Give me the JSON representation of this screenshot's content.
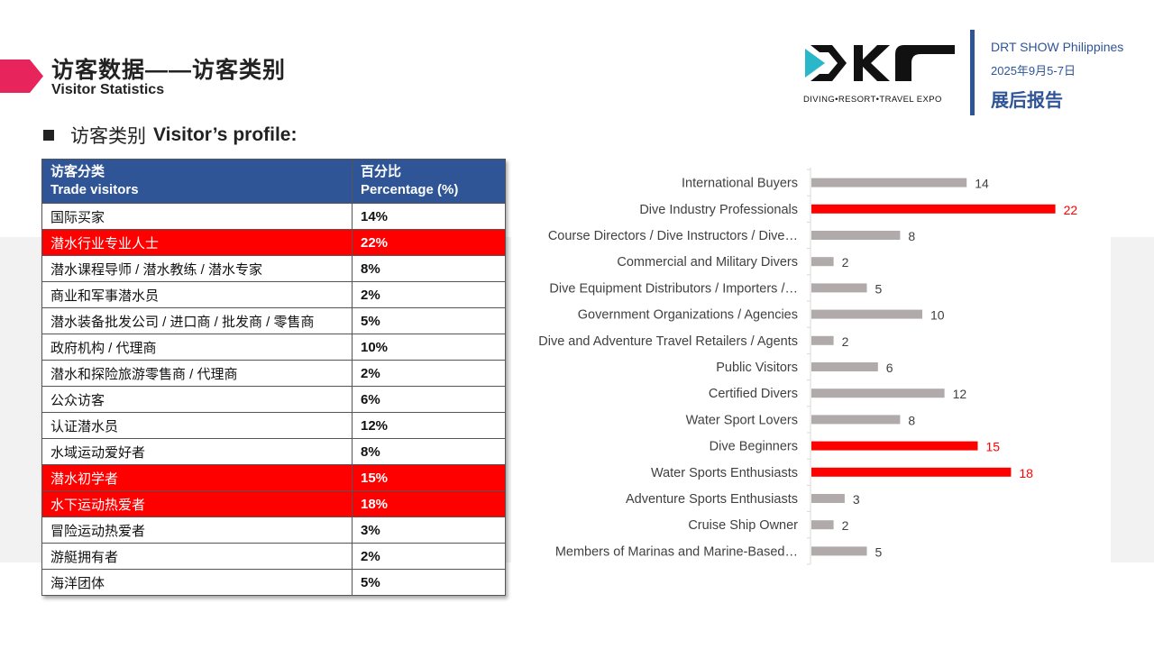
{
  "header": {
    "title_cn": "访客数据——访客类别",
    "title_en": "Visitor Statistics"
  },
  "logo": {
    "tagline": "DIVING•RESORT•TRAVEL EXPO"
  },
  "event": {
    "name": "DRT SHOW Philippines",
    "date": "2025年9月5-7日",
    "report": "展后报告"
  },
  "section": {
    "cn": "访客类别",
    "en": "Visitor’s profile:"
  },
  "table": {
    "header": {
      "col1_cn": "访客分类",
      "col1_en": "Trade visitors",
      "col2_cn": "百分比",
      "col2_en": "Percentage (%)"
    },
    "rows": [
      {
        "name": "国际买家",
        "pct": "14%",
        "highlight": false
      },
      {
        "name": "潜水行业专业人士",
        "pct": "22%",
        "highlight": true
      },
      {
        "name": "潜水课程导师 / 潜水教练 / 潜水专家",
        "pct": "8%",
        "highlight": false
      },
      {
        "name": "商业和军事潜水员",
        "pct": "2%",
        "highlight": false
      },
      {
        "name": "潜水装备批发公司 / 进口商 / 批发商 / 零售商",
        "pct": "5%",
        "highlight": false
      },
      {
        "name": "政府机构 / 代理商",
        "pct": "10%",
        "highlight": false
      },
      {
        "name": "潜水和探险旅游零售商 / 代理商",
        "pct": "2%",
        "highlight": false
      },
      {
        "name": "公众访客",
        "pct": "6%",
        "highlight": false
      },
      {
        "name": "认证潜水员",
        "pct": "12%",
        "highlight": false
      },
      {
        "name": "水域运动爱好者",
        "pct": "8%",
        "highlight": false
      },
      {
        "name": "潜水初学者",
        "pct": "15%",
        "highlight": true
      },
      {
        "name": "水下运动热爱者",
        "pct": "18%",
        "highlight": true
      },
      {
        "name": "冒险运动热爱者",
        "pct": "3%",
        "highlight": false
      },
      {
        "name": "游艇拥有者",
        "pct": "2%",
        "highlight": false
      },
      {
        "name": "海洋团体",
        "pct": "5%",
        "highlight": false
      }
    ]
  },
  "colors": {
    "accent_blue": "#2f5597",
    "highlight_red": "#ff0000",
    "bar_gray": "#b0aaaa",
    "arrow_pink": "#e8245c"
  },
  "chart_data": {
    "type": "bar",
    "orientation": "horizontal",
    "categories": [
      "International Buyers",
      "Dive Industry Professionals",
      "Course Directors / Dive Instructors / Dive…",
      "Commercial and Military Divers",
      "Dive Equipment Distributors / Importers /…",
      "Government Organizations / Agencies",
      "Dive and Adventure Travel Retailers / Agents",
      "Public Visitors",
      "Certified Divers",
      "Water Sport Lovers",
      "Dive Beginners",
      "Water Sports Enthusiasts",
      "Adventure Sports Enthusiasts",
      "Cruise Ship Owner",
      "Members of Marinas and Marine-Based…"
    ],
    "values": [
      14,
      22,
      8,
      2,
      5,
      10,
      2,
      6,
      12,
      8,
      15,
      18,
      3,
      2,
      5
    ],
    "highlight": [
      false,
      true,
      false,
      false,
      false,
      false,
      false,
      false,
      false,
      false,
      true,
      true,
      false,
      false,
      false
    ],
    "data_labels": true,
    "legend": "none",
    "grid": false,
    "xlim": [
      0,
      24
    ]
  }
}
